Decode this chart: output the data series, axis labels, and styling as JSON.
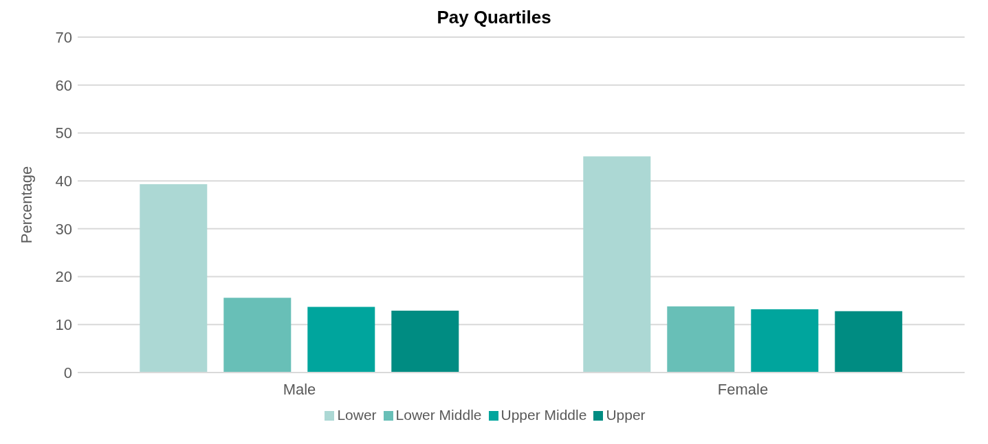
{
  "chart_data": {
    "type": "bar",
    "title": "Pay Quartiles",
    "ylabel": "Percentage",
    "categories": [
      "Male",
      "Female"
    ],
    "series": [
      {
        "name": "Lower",
        "color": "#acd8d4",
        "values": [
          39.3,
          45.1
        ]
      },
      {
        "name": "Lower Middle",
        "color": "#68bfb7",
        "values": [
          15.6,
          13.8
        ]
      },
      {
        "name": "Upper Middle",
        "color": "#00a59d",
        "values": [
          13.7,
          13.2
        ]
      },
      {
        "name": "Upper",
        "color": "#008c82",
        "values": [
          12.9,
          12.8
        ]
      }
    ],
    "ylim": [
      0,
      70
    ],
    "yticks": [
      0,
      10,
      20,
      30,
      40,
      50,
      60,
      70
    ],
    "grid": "y",
    "legend": "bottom"
  }
}
